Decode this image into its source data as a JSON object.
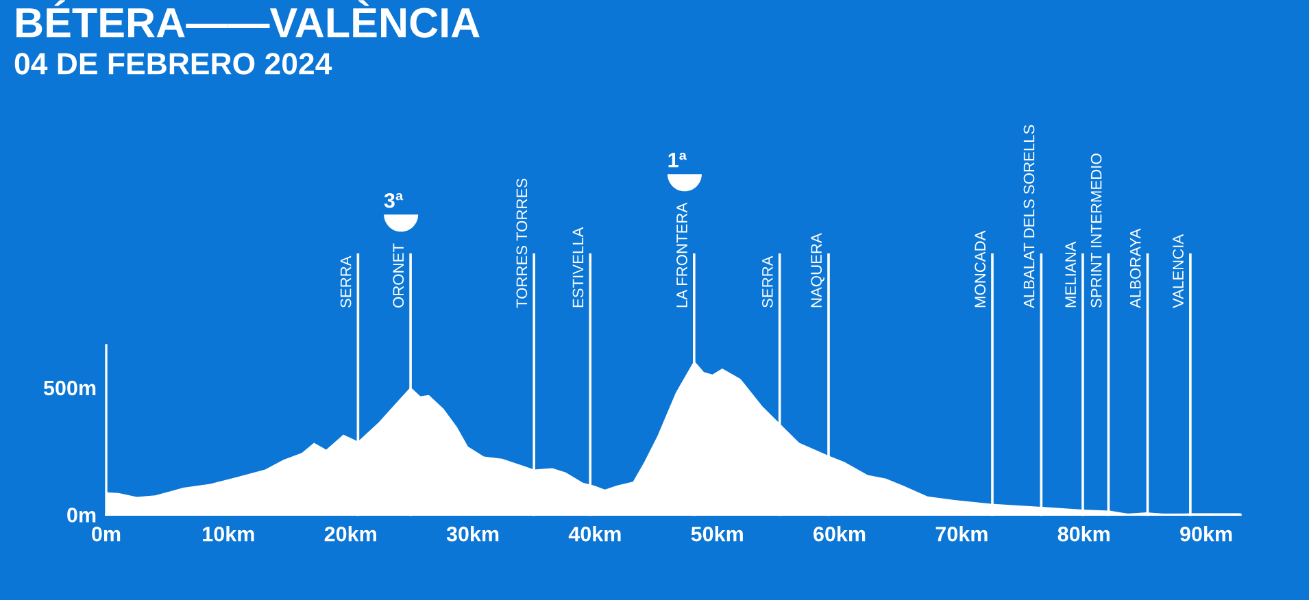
{
  "chart_data": {
    "type": "area",
    "title": "BÉTERA——VALÈNCIA",
    "subtitle": "04 DE FEBRERO 2024",
    "x": [
      0,
      1.0,
      2.5,
      4.0,
      6.3,
      8.5,
      10.7,
      13.0,
      14.5,
      16.0,
      17.0,
      18.0,
      19.4,
      20.6,
      22.3,
      23.8,
      24.9,
      25.7,
      26.4,
      27.6,
      28.7,
      29.6,
      30.9,
      32.4,
      33.9,
      35.0,
      36.5,
      37.6,
      39.0,
      39.9,
      40.8,
      41.8,
      43.1,
      44.0,
      45.1,
      46.6,
      48.1,
      48.9,
      49.6,
      50.4,
      51.9,
      53.7,
      55.0,
      56.7,
      59.1,
      60.4,
      62.3,
      63.8,
      65.3,
      67.2,
      69.4,
      72.4,
      76.5,
      79.9,
      82.1,
      83.6,
      85.1,
      87.0,
      88.8,
      92.8
    ],
    "series": [
      {
        "color": "#ffffff",
        "values": [
          88,
          85,
          70,
          76,
          106,
          121,
          148,
          178,
          216,
          243,
          283,
          256,
          315,
          288,
          364,
          444,
          502,
          466,
          471,
          417,
          345,
          268,
          229,
          220,
          196,
          178,
          183,
          166,
          126,
          115,
          99,
          115,
          130,
          205,
          310,
          480,
          606,
          561,
          552,
          575,
          534,
          426,
          364,
          283,
          232,
          207,
          156,
          142,
          112,
          72,
          58,
          43,
          31,
          20,
          16,
          4,
          9,
          2,
          5,
          5
        ]
      }
    ],
    "xlim": [
      0,
      92.8
    ],
    "xticks": [
      {
        "value": 0,
        "label": "0m"
      },
      {
        "value": 10,
        "label": "10km"
      },
      {
        "value": 20,
        "label": "20km"
      },
      {
        "value": 30,
        "label": "30km"
      },
      {
        "value": 40,
        "label": "40km"
      },
      {
        "value": 50,
        "label": "50km"
      },
      {
        "value": 60,
        "label": "60km"
      },
      {
        "value": 70,
        "label": "70km"
      },
      {
        "value": 80,
        "label": "80km"
      },
      {
        "value": 90,
        "label": "90km"
      }
    ],
    "ylim": [
      0,
      667
    ],
    "yticks": [
      {
        "value": 0,
        "label": "0m"
      },
      {
        "value": 500,
        "label": "500m"
      }
    ],
    "ref_lines": [
      {
        "axis": "x",
        "value": 20.6,
        "label": "SERRA"
      },
      {
        "axis": "x",
        "value": 24.9,
        "label": "ORONET"
      },
      {
        "axis": "x",
        "value": 35.0,
        "label": "TORRES TORRES"
      },
      {
        "axis": "x",
        "value": 39.6,
        "label": "ESTIVELLA"
      },
      {
        "axis": "x",
        "value": 48.1,
        "label": "LA FRONTERA"
      },
      {
        "axis": "x",
        "value": 55.1,
        "label": "SERRA"
      },
      {
        "axis": "x",
        "value": 59.1,
        "label": "NAQUERA"
      },
      {
        "axis": "x",
        "value": 72.5,
        "label": "MONCADA"
      },
      {
        "axis": "x",
        "value": 76.5,
        "label": "ALBALAT DELS SORELLS"
      },
      {
        "axis": "x",
        "value": 79.9,
        "label": "MELIANA"
      },
      {
        "axis": "x",
        "value": 82.0,
        "label": "SPRINT INTERMEDIO"
      },
      {
        "axis": "x",
        "value": 85.2,
        "label": "ALBORAYA"
      },
      {
        "axis": "x",
        "value": 88.7,
        "label": "VALENCIA"
      }
    ],
    "annotations": [
      "3ª",
      "1ª"
    ],
    "grid": false,
    "legend": false
  }
}
